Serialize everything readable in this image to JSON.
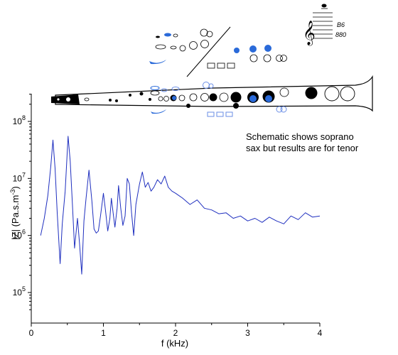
{
  "chart_data": {
    "type": "line",
    "xlabel": "f (kHz)",
    "ylabel_main": "|Z| (Pa.s.m",
    "ylabel_sup": "-3",
    "ylabel_tail": ")",
    "xlim": [
      0,
      4
    ],
    "ylim": [
      50000,
      500000000
    ],
    "yscale": "log",
    "grid": false,
    "x_ticks": [
      {
        "v": 0,
        "label": "0"
      },
      {
        "v": 1,
        "label": "1"
      },
      {
        "v": 2,
        "label": "2"
      },
      {
        "v": 3,
        "label": "3"
      },
      {
        "v": 4,
        "label": "4"
      }
    ],
    "y_ticks": [
      {
        "v": 100000,
        "base": "10",
        "exp": "5"
      },
      {
        "v": 1000000,
        "base": "10",
        "exp": "6"
      },
      {
        "v": 10000000,
        "base": "10",
        "exp": "7"
      },
      {
        "v": 100000000,
        "base": "10",
        "exp": "8"
      }
    ],
    "series": [
      {
        "color": "#1f2fbf",
        "x": [
          0.13,
          0.18,
          0.23,
          0.27,
          0.3,
          0.33,
          0.36,
          0.4,
          0.43,
          0.47,
          0.51,
          0.54,
          0.57,
          0.6,
          0.64,
          0.67,
          0.7,
          0.73,
          0.76,
          0.8,
          0.84,
          0.87,
          0.9,
          0.93,
          0.96,
          1.0,
          1.03,
          1.06,
          1.09,
          1.11,
          1.14,
          1.16,
          1.19,
          1.21,
          1.24,
          1.27,
          1.3,
          1.33,
          1.36,
          1.39,
          1.42,
          1.45,
          1.5,
          1.54,
          1.58,
          1.62,
          1.66,
          1.7,
          1.75,
          1.8,
          1.85,
          1.9,
          1.95,
          2.0,
          2.1,
          2.2,
          2.3,
          2.4,
          2.5,
          2.6,
          2.7,
          2.8,
          2.9,
          3.0,
          3.1,
          3.2,
          3.3,
          3.4,
          3.5,
          3.6,
          3.7,
          3.8,
          3.9,
          4.0
        ],
        "y": [
          1000000,
          2000000,
          5000000,
          16000000,
          47000000,
          15000000,
          2500000,
          320000,
          1600000,
          6000000,
          55000000,
          20000000,
          3500000,
          600000,
          2000000,
          700000,
          210000,
          1800000,
          4500000,
          14000000,
          4000000,
          1300000,
          1100000,
          1200000,
          2200000,
          5500000,
          2700000,
          1200000,
          2000000,
          4500000,
          2200000,
          1400000,
          3000000,
          7500000,
          3000000,
          1500000,
          2200000,
          10000000,
          8000000,
          2500000,
          1000000,
          3500000,
          8000000,
          13000000,
          7000000,
          8500000,
          6000000,
          7000000,
          9500000,
          8000000,
          11000000,
          7000000,
          6000000,
          5500000,
          4500000,
          3500000,
          4200000,
          3000000,
          2800000,
          2400000,
          2500000,
          2000000,
          2200000,
          1800000,
          2000000,
          1700000,
          2100000,
          1800000,
          1600000,
          2200000,
          1900000,
          2500000,
          2100000,
          2200000
        ]
      }
    ],
    "annotations": [
      {
        "line1": "Schematic shows soprano",
        "line2": "sax but results are for tenor"
      }
    ],
    "schematic_note": {
      "line1": "B6",
      "line2": "880"
    }
  }
}
